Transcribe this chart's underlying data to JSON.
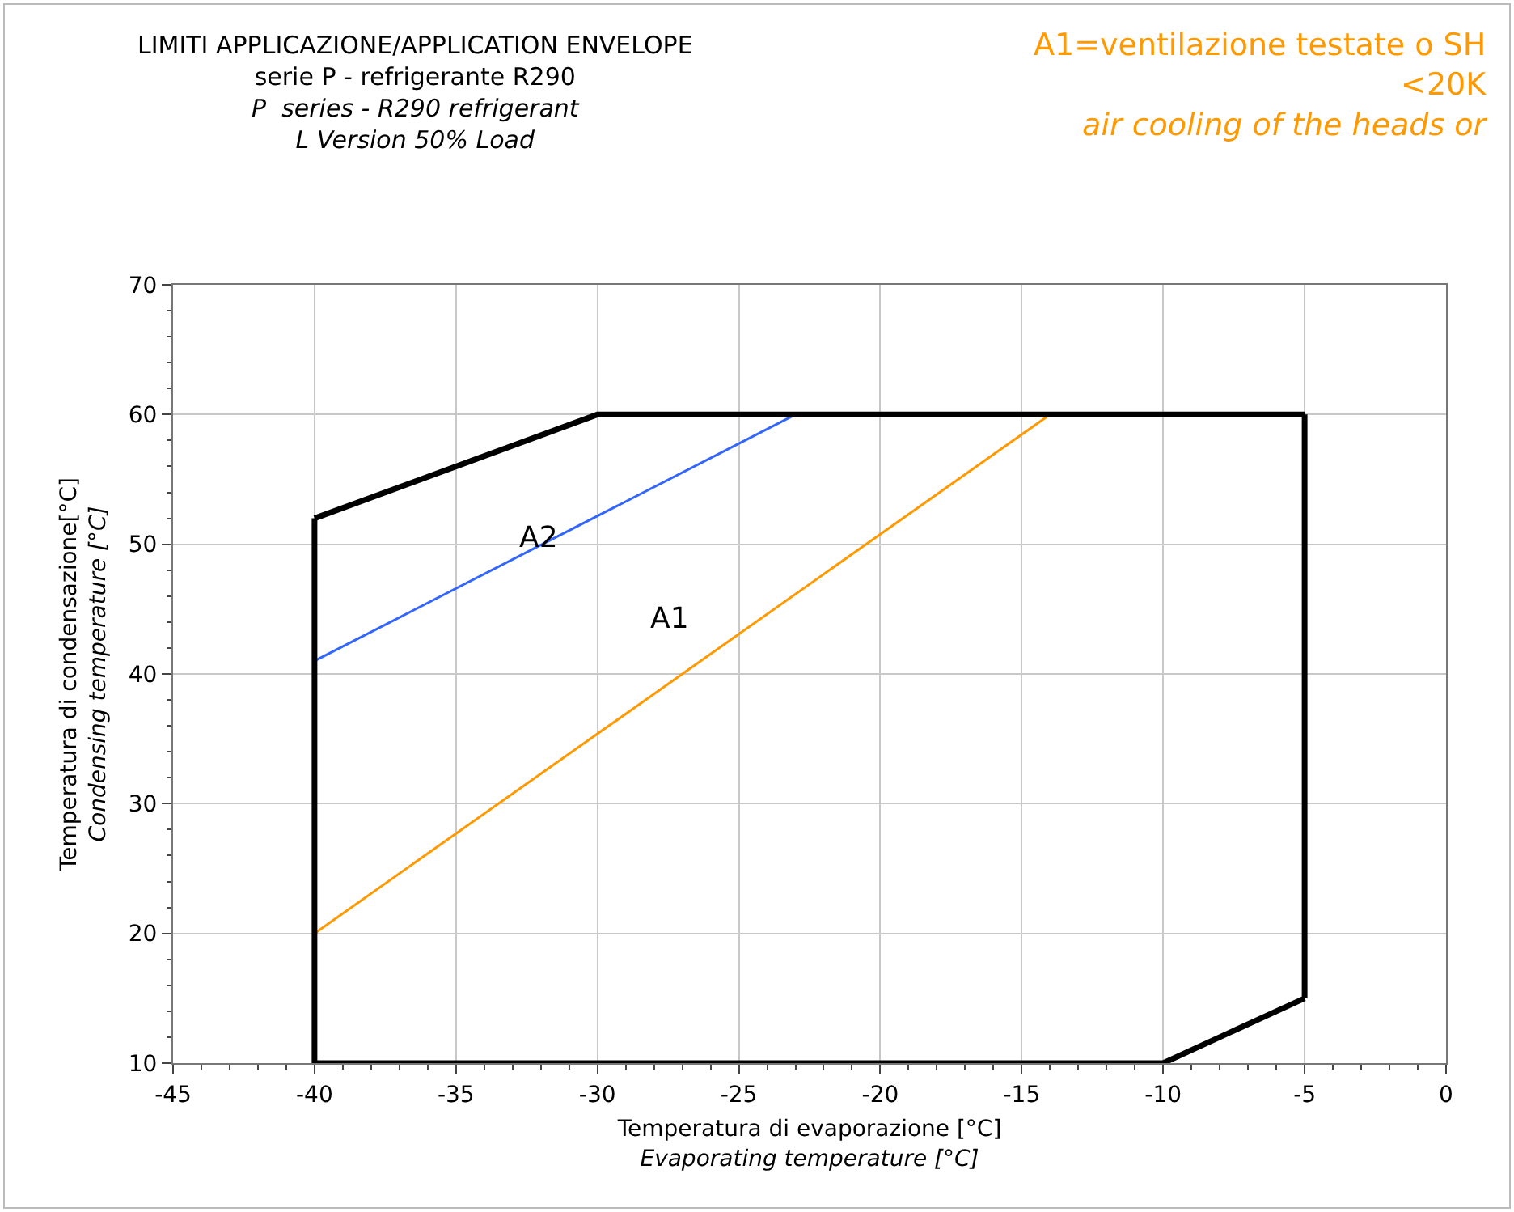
{
  "chart_data": {
    "type": "line",
    "title": "LIMITI APPLICAZIONE/APPLICATION ENVELOPE",
    "subtitle": "serie P - refrigerante R290\nP  series - R290 refrigerant\nL Version 50% Load",
    "xlabel": "Temperatura di evaporazione [°C]\nEvaporating temperature [°C]",
    "ylabel": "Temperatura di condensazione[°C]\nCondensing temperature [°C]",
    "series": [
      {
        "color": "#3366ff",
        "x": [
          -40,
          -23
        ],
        "values": [
          41,
          60
        ]
      },
      {
        "color": "#ff9900",
        "x": [
          -40,
          -14
        ],
        "values": [
          20,
          60
        ]
      },
      {
        "color": "#000000",
        "x": [
          -40,
          -30,
          -5
        ],
        "values": [
          52,
          60,
          60
        ]
      },
      {
        "color": "#000000",
        "x": [
          -40,
          -10,
          -5
        ],
        "values": [
          10,
          10,
          15
        ]
      },
      {
        "color": "#000000",
        "x": [
          -40,
          -40
        ],
        "values": [
          10,
          52
        ]
      },
      {
        "color": "#000000",
        "x": [
          -5,
          -5
        ],
        "values": [
          15,
          60
        ]
      }
    ],
    "annotations": [
      "A2",
      "A1",
      "A1=ventilazione testate o SH\n<20K\nair cooling of the heads or"
    ],
    "xlim": [
      -45,
      0
    ],
    "xticks": [
      -45,
      -40,
      -35,
      -30,
      -25,
      -20,
      -15,
      -10,
      -5,
      0
    ],
    "ylim": [
      10,
      70
    ],
    "yticks": [
      10,
      20,
      30,
      40,
      50,
      60,
      70
    ],
    "grid": true,
    "marker": "none",
    "line_style": "solid"
  }
}
